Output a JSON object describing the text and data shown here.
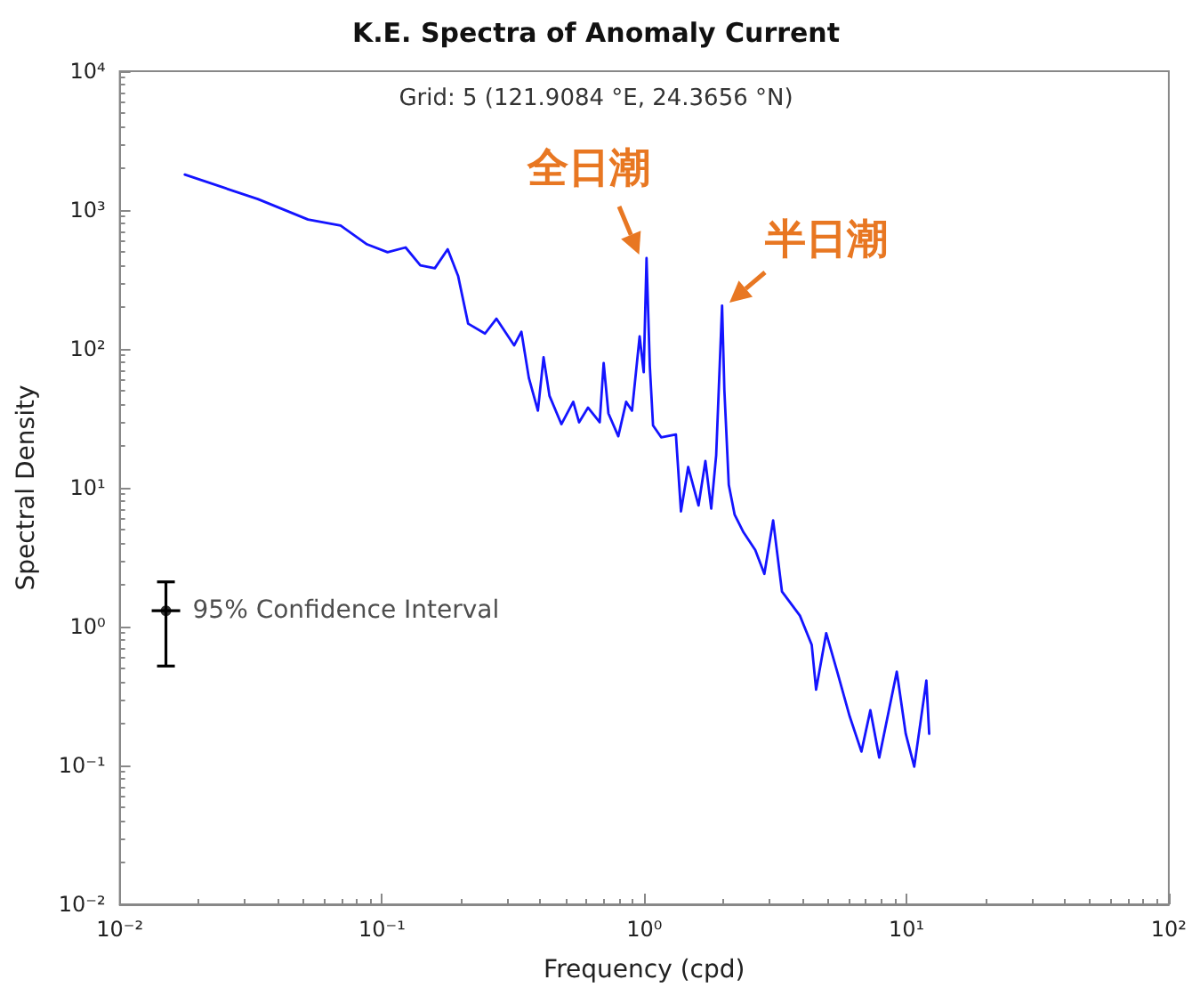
{
  "chart_data": {
    "type": "line",
    "title": "K.E. Spectra of Anomaly Current",
    "subtitle": "Grid: 5 (121.9084 °E, 24.3656 °N)",
    "xlabel": "Frequency (cpd)",
    "ylabel": "Spectral Density",
    "log": "xy",
    "grid": false,
    "legend": "left",
    "marker": "none",
    "line_style": "solid",
    "xlim": [
      0.01,
      100
    ],
    "ylim": [
      0.01,
      10000
    ],
    "xticks": [
      {
        "value": 0.01,
        "label": "10⁻²"
      },
      {
        "value": 0.1,
        "label": "10⁻¹"
      },
      {
        "value": 1,
        "label": "10⁰"
      },
      {
        "value": 10,
        "label": "10¹"
      },
      {
        "value": 100,
        "label": "10²"
      }
    ],
    "yticks": [
      {
        "value": 0.01,
        "label": "10⁻²"
      },
      {
        "value": 0.1,
        "label": "10⁻¹"
      },
      {
        "value": 1,
        "label": "10⁰"
      },
      {
        "value": 10,
        "label": "10¹"
      },
      {
        "value": 100,
        "label": "10²"
      },
      {
        "value": 1000,
        "label": "10³"
      },
      {
        "value": 10000,
        "label": "10⁴"
      }
    ],
    "annotations": [
      {
        "text": "全日潮",
        "x": 1.02,
        "y": 451
      },
      {
        "text": "半日潮",
        "x": 1.98,
        "y": 205
      }
    ],
    "series": [
      {
        "type": "line",
        "color": "#1414ff",
        "x": [
          0.0177,
          0.0336,
          0.0522,
          0.0695,
          0.0877,
          0.105,
          0.123,
          0.14,
          0.159,
          0.178,
          0.195,
          0.213,
          0.247,
          0.273,
          0.319,
          0.34,
          0.363,
          0.393,
          0.413,
          0.435,
          0.483,
          0.536,
          0.564,
          0.61,
          0.676,
          0.7,
          0.73,
          0.796,
          0.853,
          0.898,
          0.96,
          0.995,
          1.02,
          1.05,
          1.08,
          1.16,
          1.32,
          1.38,
          1.47,
          1.61,
          1.71,
          1.8,
          1.88,
          1.98,
          2.02,
          2.1,
          2.21,
          2.39,
          2.65,
          2.87,
          3.1,
          3.35,
          3.92,
          4.35,
          4.52,
          4.94,
          5.48,
          6.07,
          6.73,
          7.28,
          7.87,
          9.18,
          9.93,
          10.7,
          11.9,
          12.2
        ],
        "values": [
          1800,
          1200,
          855,
          773,
          566,
          497,
          538,
          400,
          381,
          522,
          336,
          152,
          129,
          165,
          106,
          133,
          61.8,
          35.9,
          87,
          46,
          28.7,
          41.6,
          29.6,
          37.8,
          29.6,
          79,
          34.3,
          23.5,
          41.6,
          35.9,
          123,
          68,
          451,
          75,
          28.1,
          23.1,
          24.2,
          6.75,
          14.1,
          7.45,
          15.6,
          7.08,
          17.2,
          205,
          50.7,
          10.5,
          6.42,
          4.78,
          3.56,
          2.4,
          5.82,
          1.79,
          1.2,
          0.738,
          0.352,
          0.897,
          0.451,
          0.226,
          0.126,
          0.25,
          0.114,
          0.474,
          0.169,
          0.098,
          0.409,
          0.169
        ]
      },
      {
        "type": "scatter",
        "name": "95% Confidence Interval",
        "color": "#000000",
        "marker": "circle",
        "x": [
          0.015
        ],
        "values": [
          1.3
        ],
        "errors": [
          [
            0.52,
            2.1
          ]
        ]
      }
    ]
  }
}
